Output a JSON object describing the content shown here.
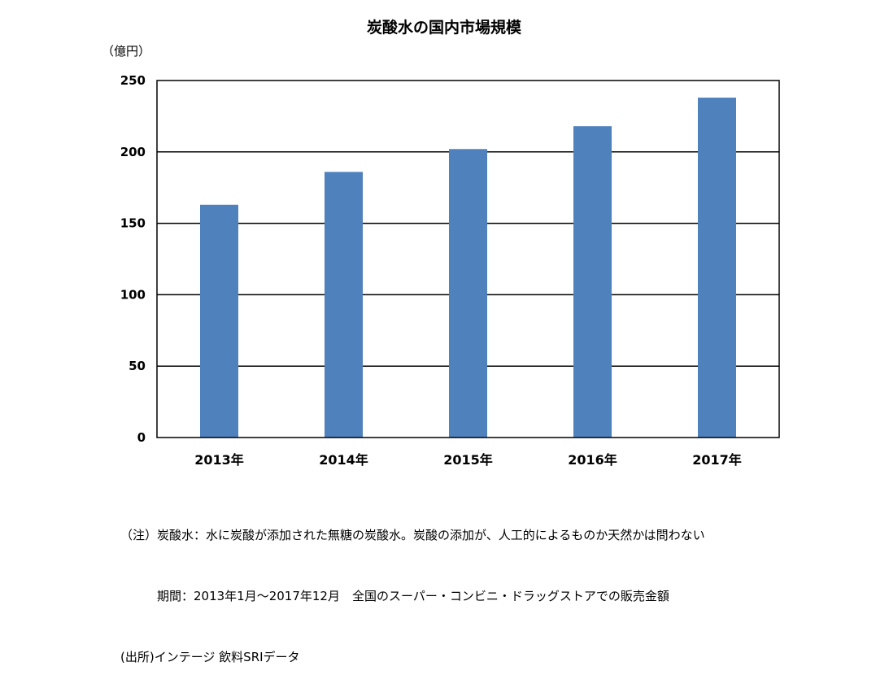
{
  "chart_data": {
    "type": "bar",
    "title": "炭酸水の国内市場規模",
    "ylabel": "（億円）",
    "xlabel": "",
    "categories": [
      "2013年",
      "2014年",
      "2015年",
      "2016年",
      "2017年"
    ],
    "values": [
      163,
      186,
      202,
      218,
      238
    ],
    "ylim": [
      0,
      250
    ],
    "yticks": [
      0,
      50,
      100,
      150,
      200,
      250
    ],
    "ytick_labels": [
      "0",
      "50",
      "100",
      "150",
      "200",
      "250"
    ],
    "grid": true,
    "legend": "none",
    "bar_color": "#4f81bd"
  },
  "notes": {
    "line1": "（注）炭酸水：水に炭酸が添加された無糖の炭酸水。炭酸の添加が、人工的によるものか天然かは問わない",
    "line2": "　　　期間：2013年1月～2017年12月　全国のスーパー・コンビニ・ドラッグストアでの販売金額",
    "line3": "(出所)インテージ 飲料SRIデータ"
  }
}
